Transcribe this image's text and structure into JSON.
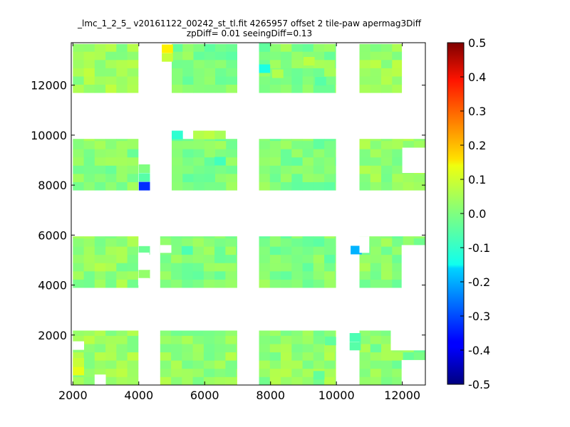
{
  "title_line1": "_lmc_1_2_5_ v20161122_00242_st_tl.fit 4265957 offset 2 tile-paw apermag3Diff",
  "title_line2": "zpDiff= 0.01 seeingDiff=0.13",
  "chart_data": {
    "type": "heatmap",
    "colormap": "jet",
    "xlim": [
      1950,
      12700
    ],
    "ylim": [
      0,
      13700
    ],
    "xticks": [
      2000,
      4000,
      6000,
      8000,
      10000,
      12000
    ],
    "yticks": [
      2000,
      4000,
      6000,
      8000,
      10000,
      12000
    ],
    "colorbar": {
      "min": -0.5,
      "max": 0.5,
      "ticks": [
        -0.5,
        -0.4,
        -0.3,
        -0.2,
        -0.1,
        0.0,
        0.1,
        0.2,
        0.3,
        0.4,
        0.5
      ]
    },
    "cell_size": [
      330,
      330
    ],
    "blocks": [
      {
        "x": [
          2000,
          3980
        ],
        "y": [
          11700,
          13650
        ],
        "value": 0.03
      },
      {
        "x": [
          5000,
          6980
        ],
        "y": [
          11700,
          13650
        ],
        "value": 0.0
      },
      {
        "x": [
          7650,
          9980
        ],
        "y": [
          11700,
          13650
        ],
        "value": 0.01
      },
      {
        "x": [
          10700,
          11980
        ],
        "y": [
          11700,
          13650
        ],
        "value": 0.03
      },
      {
        "x": [
          2000,
          3980
        ],
        "y": [
          7800,
          9850
        ],
        "value": 0.01
      },
      {
        "x": [
          5000,
          6980
        ],
        "y": [
          7800,
          9850
        ],
        "value": 0.0
      },
      {
        "x": [
          7650,
          9980
        ],
        "y": [
          7800,
          9850
        ],
        "value": 0.0
      },
      {
        "x": [
          10700,
          12700
        ],
        "y": [
          7800,
          9850
        ],
        "value": 0.02
      },
      {
        "x": [
          2000,
          3980
        ],
        "y": [
          3900,
          5950
        ],
        "value": 0.02
      },
      {
        "x": [
          4650,
          6980
        ],
        "y": [
          3900,
          5950
        ],
        "value": 0.0
      },
      {
        "x": [
          7650,
          9980
        ],
        "y": [
          3900,
          5950
        ],
        "value": 0.0
      },
      {
        "x": [
          10700,
          12700
        ],
        "y": [
          3900,
          5950
        ],
        "value": 0.01
      },
      {
        "x": [
          2000,
          3980
        ],
        "y": [
          0,
          2180
        ],
        "value": 0.03
      },
      {
        "x": [
          4650,
          6980
        ],
        "y": [
          0,
          2180
        ],
        "value": 0.02
      },
      {
        "x": [
          7650,
          9980
        ],
        "y": [
          0,
          2180
        ],
        "value": 0.02
      },
      {
        "x": [
          10700,
          12700
        ],
        "y": [
          0,
          2180
        ],
        "value": 0.01
      }
    ],
    "cells": [
      {
        "x": 4000,
        "y": 7800,
        "value": -0.33
      },
      {
        "x": 4000,
        "y": 8150,
        "value": -0.04
      },
      {
        "x": 4000,
        "y": 8500,
        "value": 0.0
      },
      {
        "x": 4700,
        "y": 13300,
        "value": 0.14
      },
      {
        "x": 4700,
        "y": 12950,
        "value": 0.07
      },
      {
        "x": 7650,
        "y": 12500,
        "value": -0.1
      },
      {
        "x": 7650,
        "y": 13350,
        "value": -0.03
      },
      {
        "x": 5000,
        "y": 9850,
        "value": -0.08
      },
      {
        "x": 5650,
        "y": 9850,
        "value": 0.05
      },
      {
        "x": 5980,
        "y": 9850,
        "value": 0.06
      },
      {
        "x": 6300,
        "y": 9850,
        "value": 0.04
      },
      {
        "x": 10430,
        "y": 5240,
        "value": -0.2
      },
      {
        "x": 10400,
        "y": 1750,
        "value": -0.05
      },
      {
        "x": 10400,
        "y": 1400,
        "value": -0.04
      },
      {
        "x": 4000,
        "y": 5230,
        "value": -0.02
      },
      {
        "x": 4000,
        "y": 4280,
        "value": 0.02
      },
      {
        "x": 12000,
        "y": 420,
        "value": 0.01
      },
      {
        "x": 12330,
        "y": 0,
        "value": -0.01
      },
      {
        "x": 12330,
        "y": 420,
        "value": 0.04
      },
      {
        "x": 5300,
        "y": 5230,
        "value": -0.05
      },
      {
        "x": 6300,
        "y": 8800,
        "value": -0.06
      },
      {
        "x": 9000,
        "y": 12800,
        "value": 0.06
      },
      {
        "x": 9350,
        "y": 12000,
        "value": -0.04
      },
      {
        "x": 8050,
        "y": 12300,
        "value": 0.05
      },
      {
        "x": 2000,
        "y": 400,
        "value": 0.1
      },
      {
        "x": 2000,
        "y": 750,
        "value": 0.07
      },
      {
        "x": 9300,
        "y": 230,
        "value": -0.03
      },
      {
        "x": 9650,
        "y": 1600,
        "value": -0.03
      }
    ],
    "gaps": [
      {
        "x": [
          2000,
          2330
        ],
        "y": [
          1420,
          1750
        ]
      },
      {
        "x": [
          2660,
          2990
        ],
        "y": [
          0,
          420
        ]
      },
      {
        "x": [
          3980,
          4310
        ],
        "y": [
          4620,
          5300
        ]
      },
      {
        "x": [
          3980,
          4310
        ],
        "y": [
          4000,
          4280
        ]
      },
      {
        "x": [
          4650,
          4980
        ],
        "y": [
          5300,
          5600
        ]
      },
      {
        "x": [
          11650,
          12700
        ],
        "y": [
          1400,
          2180
        ]
      },
      {
        "x": [
          12000,
          12700
        ],
        "y": [
          0,
          420
        ]
      },
      {
        "x": [
          12000,
          12700
        ],
        "y": [
          8500,
          9500
        ]
      },
      {
        "x": [
          11980,
          12700
        ],
        "y": [
          3900,
          5600
        ]
      },
      {
        "x": [
          10700,
          10990
        ],
        "y": [
          5300,
          5950
        ]
      },
      {
        "x": [
          11980,
          12700
        ],
        "y": [
          0,
          1000
        ]
      }
    ]
  }
}
